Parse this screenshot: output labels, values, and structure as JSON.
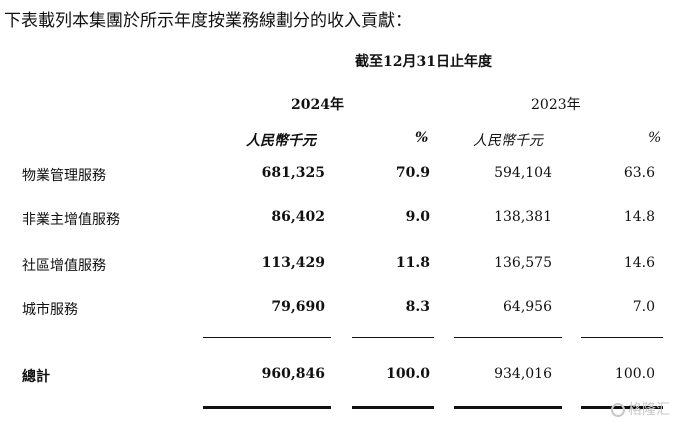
{
  "intro_text": "下表載列本集團於所示年度按業務線劃分的收入貢獻：",
  "period_header": "截至12月31日止年度",
  "years": {
    "y2024": "2024年",
    "y2023": "2023年"
  },
  "units": {
    "rmb_2024": "人民幣千元",
    "pct_2024": "%",
    "rmb_2023": "人民幣千元",
    "pct_2023": "%"
  },
  "rows": [
    {
      "label": "物業管理服務",
      "rmb_2024": "681,325",
      "pct_2024": "70.9",
      "rmb_2023": "594,104",
      "pct_2023": "63.6"
    },
    {
      "label": "非業主增值服務",
      "rmb_2024": "86,402",
      "pct_2024": "9.0",
      "rmb_2023": "138,381",
      "pct_2023": "14.8"
    },
    {
      "label": "社區增值服務",
      "rmb_2024": "113,429",
      "pct_2024": "11.8",
      "rmb_2023": "136,575",
      "pct_2023": "14.6"
    },
    {
      "label": "城市服務",
      "rmb_2024": "79,690",
      "pct_2024": "8.3",
      "rmb_2023": "64,956",
      "pct_2023": "7.0"
    }
  ],
  "total": {
    "label": "總計",
    "rmb_2024": "960,846",
    "pct_2024": "100.0",
    "rmb_2023": "934,016",
    "pct_2023": "100.0"
  },
  "watermark": {
    "text": "格隆汇",
    "icon": "g-logo-icon"
  }
}
